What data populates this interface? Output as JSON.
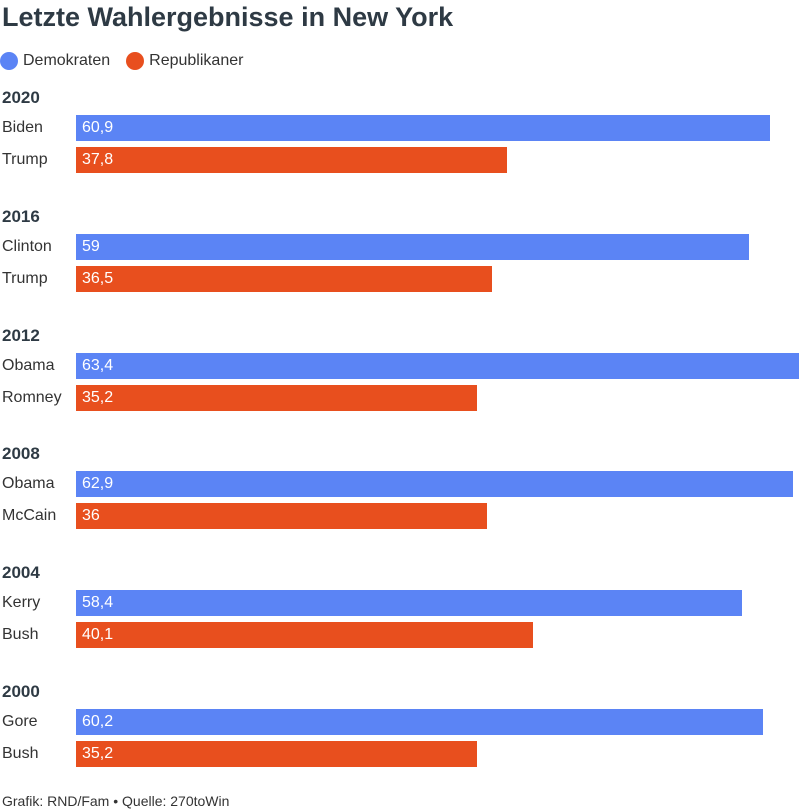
{
  "chart_data": {
    "type": "bar",
    "orientation": "horizontal",
    "title": "Letzte Wahlergebnisse in New York",
    "xlim": [
      0,
      63.4
    ],
    "grid": false,
    "legend_placement": "top-left",
    "legend": [
      {
        "label": "Demokraten",
        "color": "#5b84f5"
      },
      {
        "label": "Republikaner",
        "color": "#e84f1e"
      }
    ],
    "groups": [
      {
        "year": "2020",
        "entries": [
          {
            "candidate": "Biden",
            "party": "Demokraten",
            "value": 60.9,
            "label": "60,9"
          },
          {
            "candidate": "Trump",
            "party": "Republikaner",
            "value": 37.8,
            "label": "37,8"
          }
        ]
      },
      {
        "year": "2016",
        "entries": [
          {
            "candidate": "Clinton",
            "party": "Demokraten",
            "value": 59,
            "label": "59"
          },
          {
            "candidate": "Trump",
            "party": "Republikaner",
            "value": 36.5,
            "label": "36,5"
          }
        ]
      },
      {
        "year": "2012",
        "entries": [
          {
            "candidate": "Obama",
            "party": "Demokraten",
            "value": 63.4,
            "label": "63,4"
          },
          {
            "candidate": "Romney",
            "party": "Republikaner",
            "value": 35.2,
            "label": "35,2"
          }
        ]
      },
      {
        "year": "2008",
        "entries": [
          {
            "candidate": "Obama",
            "party": "Demokraten",
            "value": 62.9,
            "label": "62,9"
          },
          {
            "candidate": "McCain",
            "party": "Republikaner",
            "value": 36,
            "label": "36"
          }
        ]
      },
      {
        "year": "2004",
        "entries": [
          {
            "candidate": "Kerry",
            "party": "Demokraten",
            "value": 58.4,
            "label": "58,4"
          },
          {
            "candidate": "Bush",
            "party": "Republikaner",
            "value": 40.1,
            "label": "40,1"
          }
        ]
      },
      {
        "year": "2000",
        "entries": [
          {
            "candidate": "Gore",
            "party": "Demokraten",
            "value": 60.2,
            "label": "60,2"
          },
          {
            "candidate": "Bush",
            "party": "Republikaner",
            "value": 35.2,
            "label": "35,2"
          }
        ]
      }
    ],
    "footer": "Grafik: RND/Fam • Quelle: 270toWin"
  }
}
